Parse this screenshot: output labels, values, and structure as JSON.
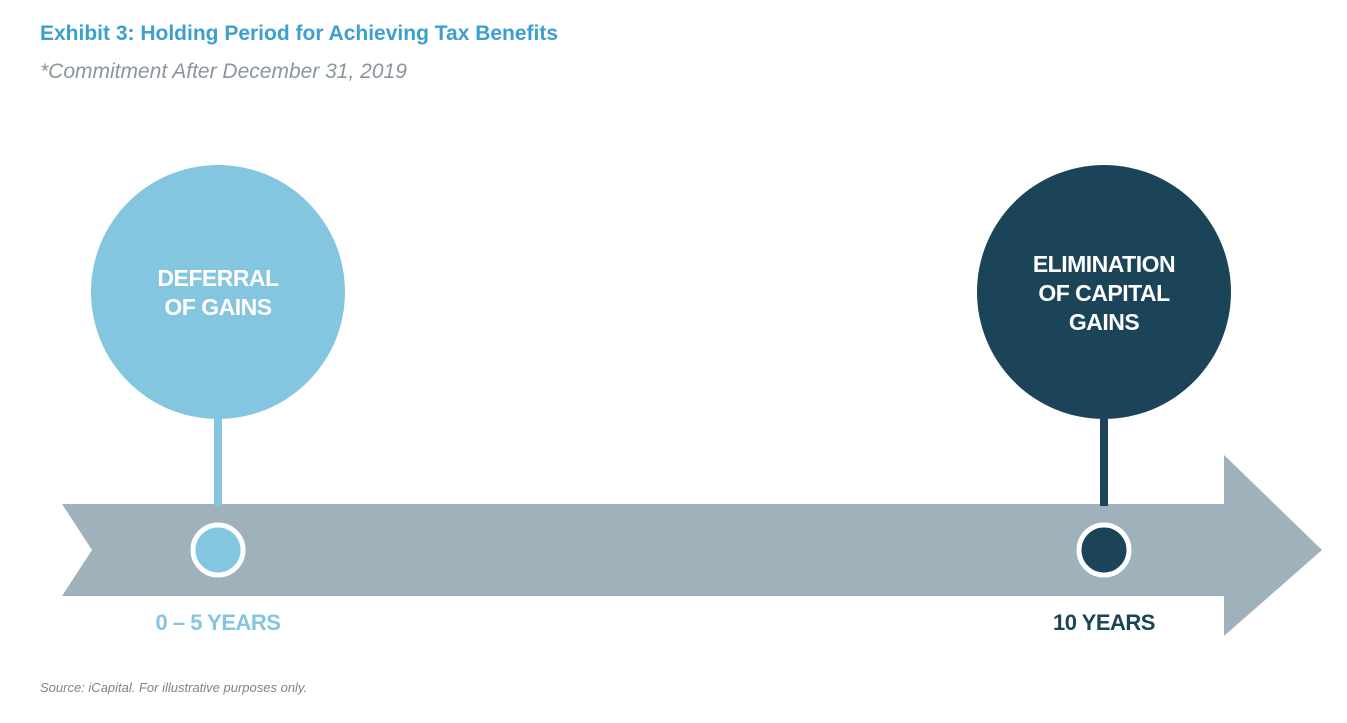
{
  "header": {
    "title": "Exhibit 3: Holding Period for Achieving Tax Benefits",
    "subtitle": "*Commitment After December 31, 2019"
  },
  "milestones": [
    {
      "circle_text_line1": "DEFERRAL",
      "circle_text_line2": "OF GAINS",
      "circle_text_line3": "",
      "label": "0 – 5 YEARS",
      "color": "#84c5df"
    },
    {
      "circle_text_line1": "ELIMINATION",
      "circle_text_line2": "OF CAPITAL",
      "circle_text_line3": "GAINS",
      "label": "10 YEARS",
      "color": "#1b4459"
    }
  ],
  "arrow_color": "#9fb2bb",
  "footer": {
    "source": "Source: iCapital. For illustrative purposes only."
  }
}
